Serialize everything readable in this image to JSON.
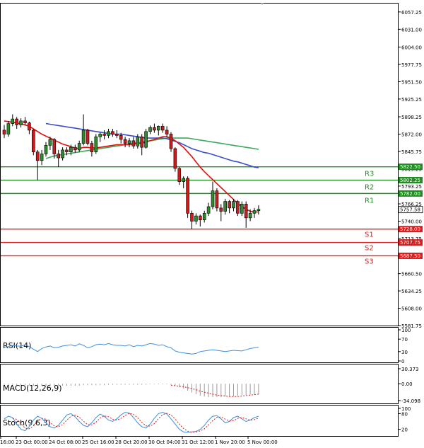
{
  "colors": {
    "background": "#ffffff",
    "frame": "#000000",
    "candle_up": "#2e8b2e",
    "candle_down": "#c81e1e",
    "ma_fast": "#e01010",
    "ma_slow": "#3a4fc8",
    "ma_long": "#3caa5a",
    "resistance": "#1e8c1e",
    "support": "#d81e1e",
    "rsi_line": "#3d8fe0",
    "macd_hist": "#9a9a9a",
    "macd_signal": "#d81e1e",
    "stoch_k": "#3d8fe0",
    "stoch_d": "#d81e1e"
  },
  "chart_data": {
    "type": "candlestick",
    "price_axis": {
      "range": [
        5581.75,
        6070.0
      ],
      "ticks": [
        "6057.25",
        "6031.00",
        "6004.00",
        "5977.75",
        "5951.50",
        "5925.25",
        "5898.25",
        "5872.00",
        "5845.75",
        "5819.25",
        "5793.25",
        "5766.25",
        "5740.00",
        "5713.75",
        "5686.75",
        "5660.50",
        "5634.25",
        "5608.00",
        "5581.75"
      ],
      "current_price": "5757.58"
    },
    "x_axis": {
      "labels": [
        "16:00",
        "23 Oct 00:00",
        "24 Oct 08:00",
        "25 Oct 16:00",
        "28 Oct 20:00",
        "30 Oct 04:00",
        "31 Oct 12:00",
        "1 Nov 20:00",
        "5 Nov 00:00"
      ]
    },
    "levels": [
      {
        "name": "R3",
        "value": 5822.5,
        "label": "5822.50",
        "kind": "resistance"
      },
      {
        "name": "R2",
        "value": 5802.25,
        "label": "5802.25",
        "kind": "resistance"
      },
      {
        "name": "R1",
        "value": 5782.0,
        "label": "5782.00",
        "kind": "resistance"
      },
      {
        "name": "S1",
        "value": 5728.0,
        "label": "5728.00",
        "kind": "support"
      },
      {
        "name": "S2",
        "value": 5707.75,
        "label": "5707.75",
        "kind": "support"
      },
      {
        "name": "S3",
        "value": 5687.5,
        "label": "5687.50",
        "kind": "support"
      }
    ],
    "candles": [
      [
        5878,
        5886,
        5866,
        5872
      ],
      [
        5872,
        5892,
        5868,
        5888
      ],
      [
        5888,
        5902,
        5884,
        5895
      ],
      [
        5895,
        5898,
        5880,
        5886
      ],
      [
        5886,
        5896,
        5882,
        5892
      ],
      [
        5892,
        5898,
        5885,
        5889
      ],
      [
        5889,
        5891,
        5872,
        5878
      ],
      [
        5878,
        5880,
        5840,
        5845
      ],
      [
        5845,
        5848,
        5802,
        5832
      ],
      [
        5832,
        5848,
        5825,
        5842
      ],
      [
        5842,
        5860,
        5838,
        5855
      ],
      [
        5855,
        5868,
        5848,
        5864
      ],
      [
        5864,
        5866,
        5835,
        5842
      ],
      [
        5842,
        5848,
        5822,
        5836
      ],
      [
        5836,
        5852,
        5832,
        5848
      ],
      [
        5848,
        5852,
        5840,
        5845
      ],
      [
        5845,
        5856,
        5840,
        5852
      ],
      [
        5852,
        5856,
        5844,
        5848
      ],
      [
        5848,
        5862,
        5845,
        5858
      ],
      [
        5858,
        5902,
        5855,
        5878
      ],
      [
        5878,
        5880,
        5855,
        5858
      ],
      [
        5858,
        5862,
        5838,
        5845
      ],
      [
        5845,
        5872,
        5842,
        5868
      ],
      [
        5868,
        5875,
        5860,
        5872
      ],
      [
        5872,
        5878,
        5864,
        5870
      ],
      [
        5870,
        5880,
        5866,
        5876
      ],
      [
        5876,
        5880,
        5868,
        5872
      ],
      [
        5872,
        5878,
        5866,
        5870
      ],
      [
        5870,
        5874,
        5858,
        5864
      ],
      [
        5864,
        5868,
        5852,
        5858
      ],
      [
        5858,
        5866,
        5852,
        5862
      ],
      [
        5862,
        5868,
        5850,
        5854
      ],
      [
        5854,
        5872,
        5850,
        5868
      ],
      [
        5868,
        5872,
        5840,
        5852
      ],
      [
        5852,
        5880,
        5850,
        5876
      ],
      [
        5876,
        5885,
        5872,
        5882
      ],
      [
        5882,
        5888,
        5874,
        5878
      ],
      [
        5878,
        5885,
        5870,
        5884
      ],
      [
        5884,
        5888,
        5874,
        5878
      ],
      [
        5878,
        5884,
        5868,
        5872
      ],
      [
        5872,
        5875,
        5845,
        5850
      ],
      [
        5850,
        5852,
        5815,
        5820
      ],
      [
        5820,
        5822,
        5795,
        5800
      ],
      [
        5800,
        5808,
        5790,
        5805
      ],
      [
        5805,
        5808,
        5745,
        5752
      ],
      [
        5752,
        5756,
        5728,
        5740
      ],
      [
        5740,
        5752,
        5735,
        5748
      ],
      [
        5748,
        5750,
        5732,
        5742
      ],
      [
        5742,
        5756,
        5738,
        5752
      ],
      [
        5752,
        5768,
        5748,
        5762
      ],
      [
        5762,
        5800,
        5758,
        5786
      ],
      [
        5786,
        5790,
        5755,
        5760
      ],
      [
        5760,
        5766,
        5740,
        5755
      ],
      [
        5755,
        5774,
        5750,
        5770
      ],
      [
        5770,
        5772,
        5752,
        5760
      ],
      [
        5760,
        5774,
        5755,
        5770
      ],
      [
        5770,
        5772,
        5748,
        5752
      ],
      [
        5752,
        5770,
        5748,
        5766
      ],
      [
        5766,
        5770,
        5730,
        5745
      ],
      [
        5745,
        5758,
        5740,
        5752
      ],
      [
        5752,
        5760,
        5745,
        5756
      ],
      [
        5756,
        5764,
        5750,
        5758
      ]
    ],
    "ma_fast": [
      5892,
      5891,
      5890,
      5889,
      5888,
      5886,
      5884,
      5880,
      5876,
      5872,
      5869,
      5866,
      5863,
      5860,
      5857,
      5855,
      5853,
      5851,
      5850,
      5852,
      5852,
      5851,
      5851,
      5852,
      5853,
      5854,
      5855,
      5856,
      5856,
      5856,
      5856,
      5857,
      5858,
      5858,
      5860,
      5862,
      5864,
      5866,
      5868,
      5868,
      5866,
      5862,
      5857,
      5852,
      5845,
      5838,
      5830,
      5822,
      5815,
      5809,
      5803,
      5797,
      5791,
      5785,
      5779,
      5773,
      5767,
      5762,
      5758,
      5755,
      5754,
      5754
    ],
    "ma_slow": [
      null,
      null,
      null,
      null,
      null,
      null,
      null,
      null,
      null,
      null,
      5888,
      5887,
      5886,
      5885,
      5884,
      5883,
      5882,
      5881,
      5880,
      5879,
      5878,
      5877,
      5876,
      5875,
      5874,
      5873,
      5872,
      5872,
      5872,
      5871,
      5870,
      5869,
      5868,
      5867,
      5866,
      5866,
      5866,
      5866,
      5866,
      5865,
      5863,
      5861,
      5859,
      5856,
      5853,
      5850,
      5848,
      5846,
      5844,
      5843,
      5841,
      5839,
      5837,
      5835,
      5833,
      5831,
      5830,
      5828,
      5826,
      5824,
      5822,
      5821
    ],
    "ma_long": [
      null,
      null,
      null,
      null,
      null,
      null,
      null,
      null,
      null,
      null,
      5835,
      5837,
      5839,
      5840,
      5841,
      5842,
      5843,
      5844,
      5845,
      5846,
      5847,
      5848,
      5849,
      5850,
      5851,
      5852,
      5853,
      5854,
      5855,
      5856,
      5857,
      5858,
      5859,
      5860,
      5861,
      5862,
      5863,
      5864,
      5865,
      5866,
      5866,
      5866,
      5866,
      5866,
      5866,
      5865,
      5864,
      5863,
      5862,
      5861,
      5860,
      5859,
      5858,
      5857,
      5856,
      5855,
      5854,
      5853,
      5852,
      5851,
      5850,
      5849
    ],
    "indicators": {
      "rsi": {
        "label": "RSI(14)",
        "range": [
          0,
          100
        ],
        "ticks": [
          "100",
          "70",
          "30",
          "0"
        ],
        "values": [
          44,
          46,
          50,
          48,
          47,
          52,
          46,
          38,
          30,
          40,
          45,
          48,
          42,
          44,
          48,
          50,
          52,
          48,
          55,
          50,
          42,
          46,
          52,
          54,
          52,
          56,
          52,
          50,
          50,
          48,
          52,
          46,
          50,
          48,
          52,
          56,
          54,
          50,
          52,
          46,
          42,
          32,
          28,
          26,
          24,
          22,
          24,
          30,
          32,
          34,
          36,
          34,
          32,
          30,
          32,
          34,
          33,
          32,
          36,
          40,
          42,
          44
        ]
      },
      "macd": {
        "label": "MACD(12,26,9)",
        "range": [
          -34.098,
          30.373
        ],
        "ticks": [
          "30.373",
          "0.00",
          "-34.098"
        ],
        "hist": [
          -2,
          -2,
          -2,
          -3,
          -3,
          -3,
          -3,
          -4,
          -4,
          -4,
          -4,
          -4,
          -4,
          -4,
          -4,
          -4,
          -4,
          -4,
          -4,
          -3,
          -3,
          -3,
          -3,
          -3,
          -3,
          -2,
          -2,
          -2,
          -2,
          -2,
          -2,
          -2,
          -2,
          -2,
          -2,
          -1,
          -1,
          -1,
          -1,
          -1,
          -2,
          -4,
          -7,
          -10,
          -14,
          -18,
          -21,
          -24,
          -26,
          -27,
          -27,
          -27,
          -27,
          -26,
          -26,
          -25,
          -24,
          -23,
          -23,
          -22,
          -22,
          -21
        ],
        "signal": [
          null,
          null,
          null,
          null,
          null,
          null,
          null,
          null,
          null,
          null,
          null,
          null,
          null,
          null,
          null,
          null,
          null,
          null,
          null,
          null,
          null,
          null,
          null,
          null,
          null,
          null,
          null,
          null,
          null,
          null,
          null,
          null,
          null,
          null,
          null,
          null,
          null,
          null,
          null,
          null,
          -3,
          -4,
          -5,
          -6,
          -8,
          -10,
          -12,
          -15,
          -17,
          -19,
          -21,
          -23,
          -24,
          -25,
          -26,
          -26,
          -26,
          -25,
          -24,
          -23,
          -22,
          -21
        ]
      },
      "stoch": {
        "label": "Stoch(9,6,3)",
        "range": [
          0,
          100
        ],
        "ticks": [
          "100",
          "80",
          "20"
        ],
        "k": [
          60,
          70,
          65,
          40,
          20,
          15,
          30,
          55,
          70,
          62,
          45,
          30,
          25,
          35,
          55,
          75,
          80,
          68,
          50,
          35,
          30,
          45,
          65,
          78,
          70,
          55,
          50,
          60,
          75,
          85,
          82,
          65,
          45,
          30,
          25,
          40,
          62,
          80,
          85,
          78,
          60,
          40,
          20,
          10,
          8,
          10,
          12,
          20,
          35,
          55,
          70,
          72,
          60,
          45,
          50,
          65,
          70,
          60,
          50,
          55,
          65,
          70
        ],
        "d": [
          null,
          null,
          62,
          58,
          42,
          25,
          22,
          33,
          52,
          62,
          59,
          46,
          33,
          30,
          38,
          55,
          70,
          74,
          66,
          51,
          38,
          37,
          47,
          63,
          71,
          68,
          58,
          55,
          62,
          73,
          81,
          77,
          64,
          47,
          33,
          32,
          42,
          61,
          76,
          81,
          74,
          59,
          40,
          23,
          13,
          9,
          10,
          14,
          22,
          37,
          53,
          66,
          67,
          59,
          52,
          53,
          62,
          65,
          60,
          55,
          57,
          63
        ]
      }
    }
  }
}
